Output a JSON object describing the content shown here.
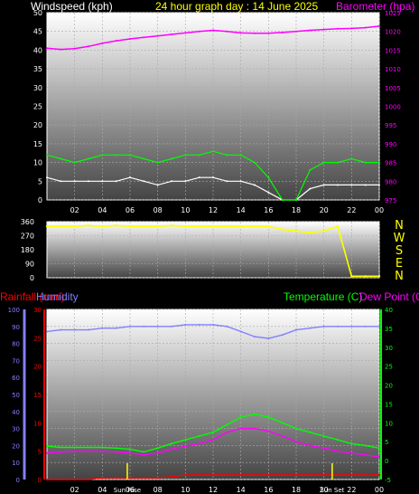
{
  "header": {
    "left_title": "Windspeed (kph)",
    "center_title": "24 hour graph day : 14 June 2025",
    "right_title": "Barometer (hpa)"
  },
  "labels": {
    "rainfall": "Rainfall (mm)",
    "humidity": "Humidity",
    "temperature": "Temperature (C)",
    "dew_point": "Dew Point (C)",
    "sun_rise": "Sun Rise",
    "sun_set": "Sun Set",
    "compass": [
      "N",
      "W",
      "S",
      "E",
      "N"
    ]
  },
  "colors": {
    "wind": "#ffffff",
    "gust": "#00ff00",
    "baro": "#ff00ff",
    "winddir": "#ffff00",
    "rain": "#ff0000",
    "humidity": "#8080ff",
    "temp": "#00ff00",
    "dew": "#ff00ff",
    "title_center": "#ffff00"
  },
  "chart_data": [
    {
      "type": "line",
      "x_ticks": [
        "02",
        "04",
        "06",
        "08",
        "10",
        "12",
        "14",
        "16",
        "18",
        "20",
        "22",
        "00"
      ],
      "xlabel": "",
      "ylabel": "Windspeed (kph)",
      "ylim": [
        0,
        50
      ],
      "y_ticks": [
        0,
        5,
        10,
        15,
        20,
        25,
        30,
        35,
        40,
        45,
        50
      ],
      "y2label": "Barometer (hpa)",
      "y2lim": [
        975,
        1025
      ],
      "y2_ticks": [
        975,
        980,
        985,
        990,
        995,
        1000,
        1005,
        1010,
        1015,
        1020,
        1025
      ],
      "series": [
        {
          "name": "Windspeed (kph)",
          "axis": "y",
          "x": [
            0,
            1,
            2,
            3,
            4,
            5,
            6,
            7,
            8,
            9,
            10,
            11,
            12,
            13,
            14,
            15,
            16,
            17,
            18,
            19,
            20,
            21,
            22,
            23,
            24
          ],
          "values": [
            6,
            5,
            5,
            5,
            5,
            5,
            6,
            5,
            4,
            5,
            5,
            6,
            6,
            5,
            5,
            4,
            2,
            0,
            0,
            3,
            4,
            4,
            4,
            4,
            4
          ]
        },
        {
          "name": "Gust (kph)",
          "axis": "y",
          "x": [
            0,
            1,
            2,
            3,
            4,
            5,
            6,
            7,
            8,
            9,
            10,
            11,
            12,
            13,
            14,
            15,
            16,
            17,
            18,
            19,
            20,
            21,
            22,
            23,
            24
          ],
          "values": [
            12,
            11,
            10,
            11,
            12,
            12,
            12,
            11,
            10,
            11,
            12,
            12,
            13,
            12,
            12,
            10,
            6,
            0,
            0,
            8,
            10,
            10,
            11,
            10,
            10
          ]
        },
        {
          "name": "Barometer (hpa)",
          "axis": "y2",
          "x": [
            0,
            1,
            2,
            3,
            4,
            5,
            6,
            7,
            8,
            9,
            10,
            11,
            12,
            13,
            14,
            15,
            16,
            17,
            18,
            19,
            20,
            21,
            22,
            23,
            24
          ],
          "values": [
            1015.5,
            1015.2,
            1015.4,
            1016,
            1016.8,
            1017.5,
            1018,
            1018.4,
            1018.8,
            1019.2,
            1019.6,
            1020,
            1020.3,
            1020,
            1019.6,
            1019.5,
            1019.5,
            1019.7,
            1020,
            1020.3,
            1020.5,
            1020.7,
            1020.8,
            1021,
            1021.4
          ]
        }
      ]
    },
    {
      "type": "line",
      "x_ticks": [
        "02",
        "04",
        "06",
        "08",
        "10",
        "12",
        "14",
        "16",
        "18",
        "20",
        "22",
        "00"
      ],
      "ylabel": "Wind direction",
      "ylim": [
        0,
        360
      ],
      "y_ticks": [
        0,
        90,
        180,
        270,
        360
      ],
      "series": [
        {
          "name": "Wind direction",
          "x": [
            0,
            1,
            2,
            3,
            4,
            5,
            6,
            7,
            8,
            9,
            10,
            11,
            12,
            13,
            14,
            15,
            16,
            17,
            18,
            19,
            20,
            21,
            22,
            23,
            24
          ],
          "values": [
            330,
            330,
            330,
            335,
            330,
            335,
            330,
            330,
            330,
            335,
            330,
            330,
            330,
            330,
            330,
            330,
            330,
            310,
            300,
            290,
            300,
            330,
            10,
            10,
            10
          ]
        }
      ]
    },
    {
      "type": "line",
      "x_ticks": [
        "02",
        "04",
        "06",
        "08",
        "10",
        "12",
        "14",
        "16",
        "18",
        "20",
        "22",
        "00"
      ],
      "y_humidity_lim": [
        0,
        100
      ],
      "y_humidity_ticks": [
        0,
        10,
        20,
        30,
        40,
        50,
        60,
        70,
        80,
        90,
        100
      ],
      "y_rain_lim": [
        0,
        30
      ],
      "y_rain_ticks": [
        0,
        5,
        10,
        15,
        20,
        25,
        30
      ],
      "y_temp_lim": [
        -5,
        40
      ],
      "y_temp_ticks": [
        -5,
        0,
        5,
        10,
        15,
        20,
        25,
        30,
        35,
        40
      ],
      "series": [
        {
          "name": "Humidity",
          "axis": "humidity",
          "x": [
            0,
            1,
            2,
            3,
            4,
            5,
            6,
            7,
            8,
            9,
            10,
            11,
            12,
            13,
            14,
            15,
            16,
            17,
            18,
            19,
            20,
            21,
            22,
            23,
            24
          ],
          "values": [
            87,
            88,
            88,
            88,
            89,
            89,
            90,
            90,
            90,
            90,
            91,
            91,
            91,
            90,
            87,
            84,
            83,
            85,
            88,
            89,
            90,
            90,
            90,
            90,
            90
          ]
        },
        {
          "name": "Rainfall (mm)",
          "axis": "rain",
          "x": [
            0,
            1,
            2,
            3,
            4,
            5,
            6,
            7,
            8,
            9,
            10,
            11,
            12,
            13,
            14,
            15,
            16,
            17,
            18,
            19,
            20,
            21,
            22,
            23,
            24
          ],
          "values": [
            0,
            0,
            0,
            0,
            0.3,
            0.3,
            0.3,
            0.3,
            0.3,
            0.5,
            0.8,
            0.8,
            0.8,
            0.8,
            0.8,
            0.8,
            0.8,
            0.8,
            0.8,
            0.8,
            0.8,
            0.8,
            0.8,
            0.8,
            0.8
          ]
        },
        {
          "name": "Temperature (C)",
          "axis": "temp",
          "x": [
            0,
            1,
            2,
            3,
            4,
            5,
            6,
            7,
            8,
            9,
            10,
            11,
            12,
            13,
            14,
            15,
            16,
            17,
            18,
            19,
            20,
            21,
            22,
            23,
            24
          ],
          "values": [
            3.8,
            3.5,
            3.5,
            3.5,
            3.5,
            3.3,
            3.0,
            2.3,
            3.3,
            4.5,
            5.5,
            6.5,
            7.5,
            9.5,
            11.5,
            12.3,
            11.5,
            10.0,
            8.5,
            7.5,
            6.5,
            5.5,
            4.5,
            4.0,
            3.3
          ]
        },
        {
          "name": "Dew Point (C)",
          "axis": "temp",
          "x": [
            0,
            1,
            2,
            3,
            4,
            5,
            6,
            7,
            8,
            9,
            10,
            11,
            12,
            13,
            14,
            15,
            16,
            17,
            18,
            19,
            20,
            21,
            22,
            23,
            24
          ],
          "values": [
            2.0,
            2.3,
            2.5,
            2.5,
            2.5,
            2.3,
            2.0,
            1.5,
            2.0,
            3.0,
            3.8,
            4.5,
            5.5,
            7.5,
            8.5,
            8.5,
            7.8,
            6.5,
            5.0,
            4.0,
            3.3,
            2.5,
            2.0,
            1.5,
            1.0
          ]
        }
      ],
      "markers": [
        {
          "label": "Sun Rise",
          "x": 5.8
        },
        {
          "label": "Sun Set",
          "x": 20.6
        }
      ]
    }
  ]
}
